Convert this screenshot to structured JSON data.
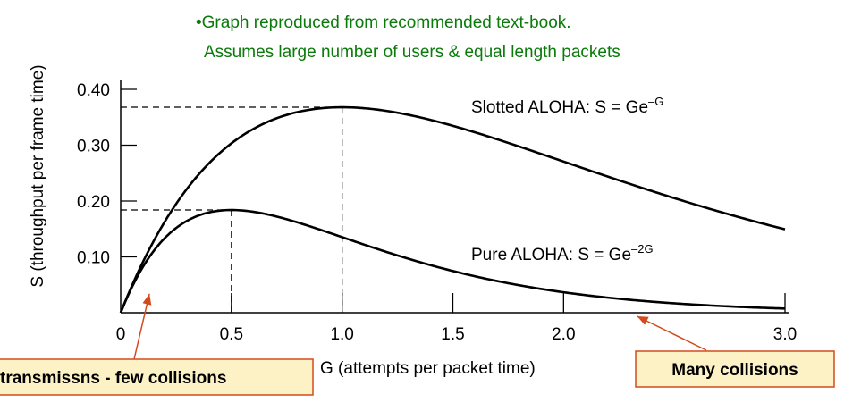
{
  "chart_data": {
    "type": "line",
    "title": "",
    "xlabel": "G (attempts per packet time)",
    "ylabel": "S (throughput per frame time)",
    "xlim": [
      0,
      3.0
    ],
    "ylim": [
      0,
      0.4
    ],
    "x_ticks": [
      0,
      0.5,
      1.0,
      1.5,
      2.0,
      3.0
    ],
    "x_tick_labels": [
      "0",
      "0.5",
      "1.0",
      "1.5",
      "2.0",
      "3.0"
    ],
    "y_ticks": [
      0.1,
      0.2,
      0.3,
      0.4
    ],
    "y_tick_labels": [
      "0.10",
      "0.20",
      "0.30",
      "0.40"
    ],
    "grid": false,
    "series": [
      {
        "name": "Slotted ALOHA",
        "label_main": "Slotted ALOHA: S = Ge",
        "label_sup": "–G",
        "formula_exponent_factor": 1,
        "peak": {
          "x": 1.0,
          "y": 0.368
        }
      },
      {
        "name": "Pure ALOHA",
        "label_main": "Pure ALOHA: S = Ge",
        "label_sup": "–2G",
        "formula_exponent_factor": 2,
        "peak": {
          "x": 0.5,
          "y": 0.184
        }
      }
    ],
    "annotations": {
      "note_line1": "•Graph reproduced from recommended text-book.",
      "note_line2": "Assumes large number of users & equal length packets",
      "callout_left": "transmissns - few collisions",
      "callout_right": "Many collisions",
      "callout_left_target": {
        "x": 0.15,
        "y": 0.05
      },
      "callout_right_target": {
        "x": 2.3,
        "y": 0.0
      }
    },
    "colors": {
      "curve": "#000000",
      "note": "#0a7a0a",
      "callout_fill": "#fdf2c6",
      "callout_border": "#d44a1f",
      "arrow": "#d44a1f"
    }
  }
}
